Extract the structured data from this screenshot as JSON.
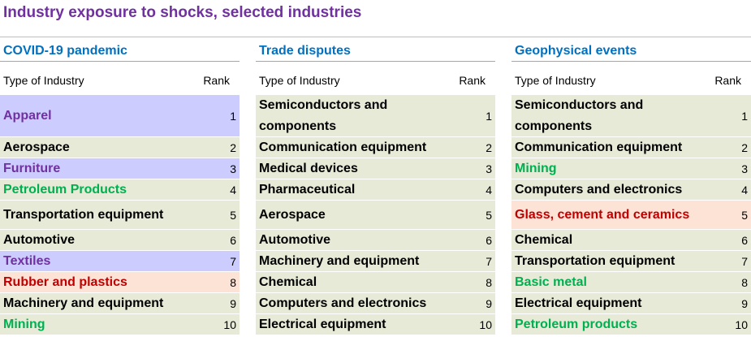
{
  "title": "Industry exposure to shocks, selected industries",
  "header": {
    "type": "Type of Industry",
    "rank": "Rank"
  },
  "panels": [
    {
      "title": "COVID-19 pandemic",
      "rows": [
        {
          "name": "Apparel",
          "rank": "1",
          "color": "#7030a0",
          "bg": "#ccccff"
        },
        {
          "name": "Aerospace",
          "rank": "2",
          "color": "#000000",
          "bg": "#e6ead6"
        },
        {
          "name": "Furniture",
          "rank": "3",
          "color": "#7030a0",
          "bg": "#ccccff"
        },
        {
          "name": "Petroleum Products",
          "rank": "4",
          "color": "#00b050",
          "bg": "#e6ead6"
        },
        {
          "name": "Transportation equipment",
          "rank": "5",
          "color": "#000000",
          "bg": "#e6ead6"
        },
        {
          "name": "Automotive",
          "rank": "6",
          "color": "#000000",
          "bg": "#e6ead6"
        },
        {
          "name": "Textiles",
          "rank": "7",
          "color": "#7030a0",
          "bg": "#ccccff"
        },
        {
          "name": "Rubber and plastics",
          "rank": "8",
          "color": "#c00000",
          "bg": "#fde2d6"
        },
        {
          "name": "Machinery and equipment",
          "rank": "9",
          "color": "#000000",
          "bg": "#e6ead6"
        },
        {
          "name": "Mining",
          "rank": "10",
          "color": "#00b050",
          "bg": "#e6ead6"
        }
      ]
    },
    {
      "title": "Trade disputes",
      "rows": [
        {
          "name": "Semiconductors and components",
          "rank": "1",
          "color": "#000000",
          "bg": "#e6ead6"
        },
        {
          "name": "Communication equipment",
          "rank": "2",
          "color": "#000000",
          "bg": "#e6ead6"
        },
        {
          "name": "Medical devices",
          "rank": "3",
          "color": "#000000",
          "bg": "#e6ead6"
        },
        {
          "name": "Pharmaceutical",
          "rank": "4",
          "color": "#000000",
          "bg": "#e6ead6"
        },
        {
          "name": "Aerospace",
          "rank": "5",
          "color": "#000000",
          "bg": "#e6ead6"
        },
        {
          "name": "Automotive",
          "rank": "6",
          "color": "#000000",
          "bg": "#e6ead6"
        },
        {
          "name": "Machinery and equipment",
          "rank": "7",
          "color": "#000000",
          "bg": "#e6ead6"
        },
        {
          "name": "Chemical",
          "rank": "8",
          "color": "#000000",
          "bg": "#e6ead6"
        },
        {
          "name": "Computers and electronics",
          "rank": "9",
          "color": "#000000",
          "bg": "#e6ead6"
        },
        {
          "name": "Electrical equipment",
          "rank": "10",
          "color": "#000000",
          "bg": "#e6ead6"
        }
      ]
    },
    {
      "title": "Geophysical events",
      "rows": [
        {
          "name": "Semiconductors and components",
          "rank": "1",
          "color": "#000000",
          "bg": "#e6ead6"
        },
        {
          "name": "Communication equipment",
          "rank": "2",
          "color": "#000000",
          "bg": "#e6ead6"
        },
        {
          "name": "Mining",
          "rank": "3",
          "color": "#00b050",
          "bg": "#e6ead6"
        },
        {
          "name": "Computers and electronics",
          "rank": "4",
          "color": "#000000",
          "bg": "#e6ead6"
        },
        {
          "name": "Glass, cement and ceramics",
          "rank": "5",
          "color": "#c00000",
          "bg": "#fde2d6"
        },
        {
          "name": "Chemical",
          "rank": "6",
          "color": "#000000",
          "bg": "#e6ead6"
        },
        {
          "name": "Transportation equipment",
          "rank": "7",
          "color": "#000000",
          "bg": "#e6ead6"
        },
        {
          "name": "Basic metal",
          "rank": "8",
          "color": "#00b050",
          "bg": "#e6ead6"
        },
        {
          "name": "Electrical equipment",
          "rank": "9",
          "color": "#000000",
          "bg": "#e6ead6"
        },
        {
          "name": "Petroleum products",
          "rank": "10",
          "color": "#00b050",
          "bg": "#e6ead6"
        }
      ]
    }
  ]
}
